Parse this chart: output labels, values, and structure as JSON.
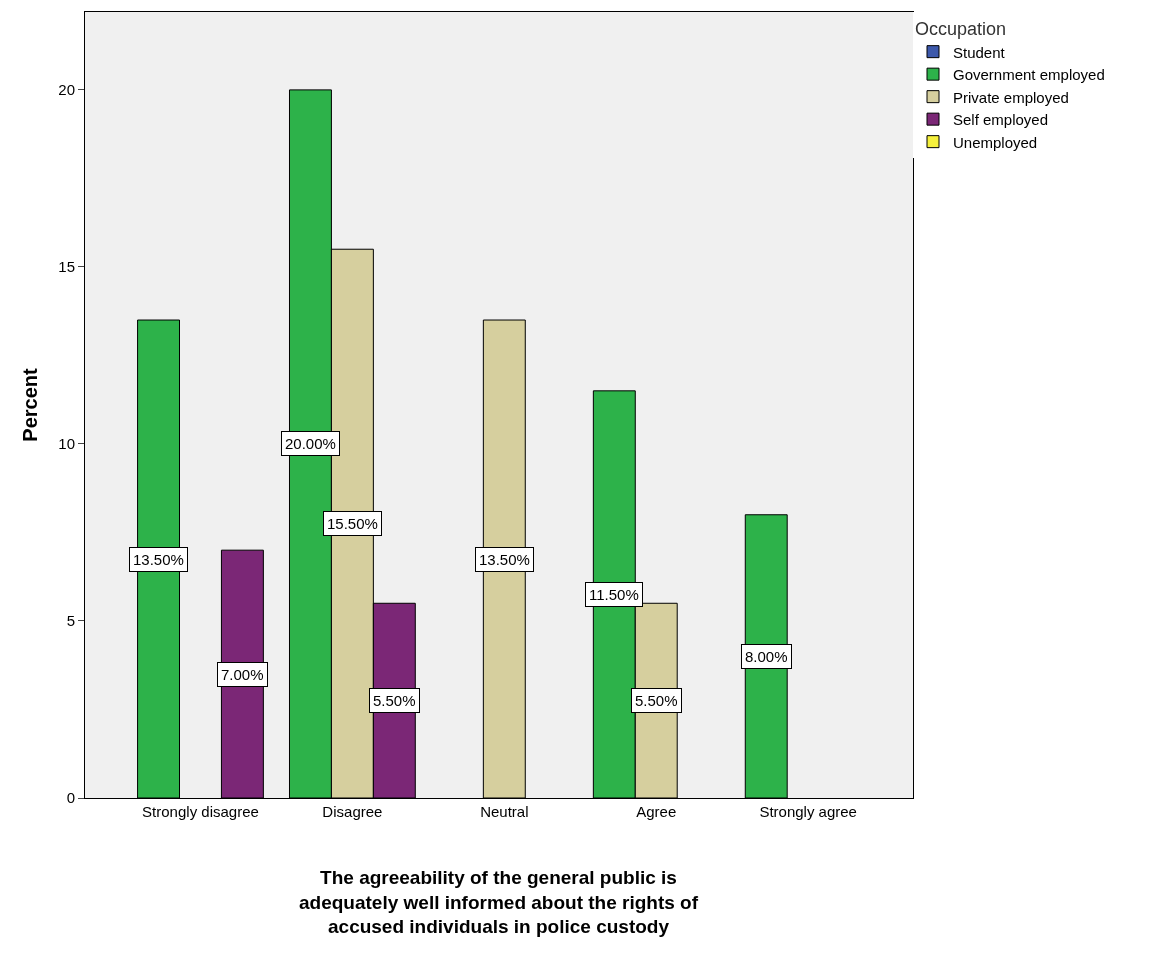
{
  "chart_data": {
    "type": "bar",
    "xlabel": "The agreeability of the general public is adequately well informed about the rights of accused individuals in police custody",
    "ylabel": "Percent",
    "legend_title": "Occupation",
    "categories": [
      "Strongly disagree",
      "Disagree",
      "Neutral",
      "Agree",
      "Strongly agree"
    ],
    "series": [
      {
        "name": "Student",
        "color": "#3d59ab",
        "values": [
          null,
          null,
          null,
          null,
          null
        ]
      },
      {
        "name": "Government employed",
        "color": "#2db24a",
        "values": [
          13.5,
          20.0,
          null,
          11.5,
          8.0
        ],
        "value_labels": [
          "13.50%",
          "20.00%",
          null,
          "11.50%",
          "8.00%"
        ]
      },
      {
        "name": "Private employed",
        "color": "#d6cf9e",
        "values": [
          null,
          15.5,
          13.5,
          5.5,
          null
        ],
        "value_labels": [
          null,
          "15.50%",
          "13.50%",
          "5.50%",
          null
        ]
      },
      {
        "name": "Self employed",
        "color": "#7b2776",
        "values": [
          7.0,
          5.5,
          null,
          null,
          null
        ],
        "value_labels": [
          "7.00%",
          "5.50%",
          null,
          null,
          null
        ]
      },
      {
        "name": "Unemployed",
        "color": "#f5f03c",
        "values": [
          null,
          null,
          null,
          null,
          null
        ]
      }
    ],
    "ylim": [
      0,
      22.2
    ],
    "yticks": [
      0,
      5,
      10,
      15,
      20
    ],
    "legend": "top right"
  }
}
